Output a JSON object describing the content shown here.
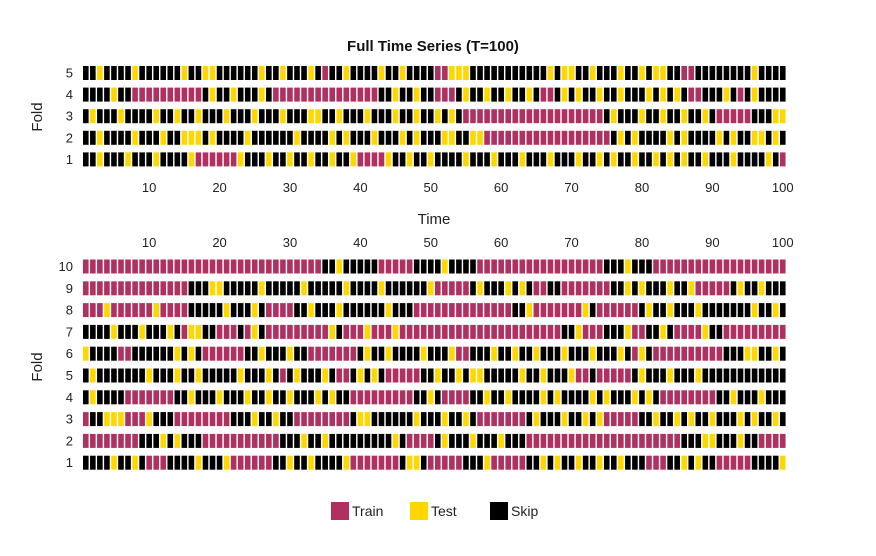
{
  "chart_data": {
    "type": "heatmap",
    "title": "Full Time Series (T=100)",
    "legend": {
      "position": "bottom",
      "entries": [
        {
          "label": "Train",
          "color": "#b03060"
        },
        {
          "label": "Test",
          "color": "#ffd700"
        },
        {
          "label": "Skip",
          "color": "#000000"
        }
      ]
    },
    "panels": [
      {
        "xlabel": "Time",
        "ylabel": "Fold",
        "x_ticks": [
          10,
          20,
          30,
          40,
          50,
          60,
          70,
          80,
          90,
          100
        ],
        "x_tick_position": "bottom",
        "y_ticks": [
          1,
          2,
          3,
          4,
          5
        ],
        "xlim": [
          1,
          100
        ],
        "rows": [
          {
            "fold": 1,
            "train": [
              [
                17,
                22
              ],
              [
                40,
                43
              ],
              [
                100,
                100
              ]
            ],
            "test": [
              3,
              7,
              11,
              16,
              23,
              27,
              30,
              33,
              36,
              39,
              44,
              47,
              50,
              55,
              59,
              63,
              67,
              71,
              74,
              76,
              79,
              82,
              84,
              86,
              89,
              93,
              98
            ]
          },
          {
            "fold": 2,
            "train": [
              [
                58,
                75
              ]
            ],
            "test": [
              3,
              8,
              12,
              15,
              16,
              17,
              19,
              24,
              31,
              36,
              38,
              42,
              46,
              48,
              52,
              53,
              56,
              57,
              77,
              79,
              84,
              86,
              91,
              93,
              96,
              97,
              99
            ]
          },
          {
            "fold": 3,
            "train": [
              [
                55,
                74
              ],
              [
                91,
                95
              ]
            ],
            "test": [
              2,
              6,
              11,
              14,
              17,
              21,
              25,
              29,
              33,
              34,
              37,
              41,
              45,
              48,
              51,
              53,
              76,
              80,
              83,
              86,
              89,
              99,
              100
            ]
          },
          {
            "fold": 4,
            "train": [
              [
                8,
                17
              ],
              [
                28,
                42
              ],
              [
                51,
                53
              ],
              [
                66,
                67
              ],
              [
                87,
                88
              ],
              [
                94,
                94
              ]
            ],
            "test": [
              5,
              19,
              22,
              26,
              45,
              48,
              55,
              58,
              61,
              64,
              69,
              71,
              74,
              77,
              81,
              83,
              85,
              92,
              96
            ]
          },
          {
            "fold": 5,
            "train": [
              [
                35,
                35
              ],
              [
                51,
                52
              ],
              [
                86,
                87
              ]
            ],
            "test": [
              3,
              8,
              15,
              18,
              19,
              26,
              29,
              33,
              38,
              43,
              46,
              53,
              54,
              55,
              67,
              69,
              70,
              73,
              77,
              80,
              82,
              83,
              96
            ]
          }
        ]
      },
      {
        "xlabel": "",
        "ylabel": "Fold",
        "x_ticks": [
          10,
          20,
          30,
          40,
          50,
          60,
          70,
          80,
          90,
          100
        ],
        "x_tick_position": "top",
        "y_ticks": [
          1,
          2,
          3,
          4,
          5,
          6,
          7,
          8,
          9,
          10
        ],
        "xlim": [
          1,
          100
        ],
        "rows": [
          {
            "fold": 1,
            "train": [
              [
                10,
                12
              ],
              [
                22,
                27
              ],
              [
                39,
                45
              ],
              [
                50,
                54
              ],
              [
                59,
                63
              ],
              [
                81,
                83
              ],
              [
                91,
                95
              ]
            ],
            "test": [
              5,
              8,
              17,
              21,
              30,
              33,
              38,
              47,
              48,
              58,
              66,
              68,
              71,
              74,
              77,
              86,
              88,
              100
            ]
          },
          {
            "fold": 2,
            "train": [
              [
                1,
                8
              ],
              [
                18,
                28
              ],
              [
                47,
                50
              ],
              [
                64,
                85
              ],
              [
                97,
                100
              ]
            ],
            "test": [
              12,
              14,
              32,
              35,
              45,
              52,
              56,
              60,
              89,
              90,
              94
            ]
          },
          {
            "fold": 3,
            "train": [
              [
                1,
                1
              ],
              [
                7,
                9
              ],
              [
                14,
                21
              ],
              [
                31,
                38
              ],
              [
                57,
                63
              ],
              [
                75,
                79
              ]
            ],
            "test": [
              4,
              5,
              6,
              10,
              25,
              28,
              40,
              41,
              48,
              52,
              55,
              65,
              69,
              72,
              74,
              82,
              85,
              87,
              90,
              94,
              96,
              99
            ]
          },
          {
            "fold": 4,
            "train": [
              [
                7,
                13
              ],
              [
                39,
                47
              ],
              [
                52,
                55
              ],
              [
                83,
                90
              ]
            ],
            "test": [
              2,
              16,
              20,
              24,
              27,
              30,
              34,
              36,
              50,
              58,
              61,
              66,
              68,
              73,
              75,
              79,
              81,
              93,
              97
            ]
          },
          {
            "fold": 5,
            "train": [
              [
                29,
                29
              ],
              [
                37,
                38
              ],
              [
                44,
                48
              ],
              [
                71,
                72
              ],
              [
                74,
                78
              ]
            ],
            "test": [
              2,
              10,
              14,
              17,
              23,
              27,
              31,
              35,
              40,
              42,
              51,
              54,
              56,
              57,
              63,
              66,
              70,
              80,
              84,
              88
            ]
          },
          {
            "fold": 6,
            "train": [
              [
                6,
                7
              ],
              [
                18,
                23
              ],
              [
                33,
                39
              ],
              [
                54,
                55
              ],
              [
                79,
                79
              ],
              [
                82,
                91
              ]
            ],
            "test": [
              1,
              14,
              16,
              26,
              30,
              41,
              44,
              49,
              53,
              59,
              62,
              65,
              69,
              73,
              77,
              80,
              95,
              96,
              99
            ]
          },
          {
            "fold": 7,
            "train": [
              [
                15,
                15
              ],
              [
                20,
                22
              ],
              [
                24,
                24
              ],
              [
                27,
                35
              ],
              [
                38,
                40
              ],
              [
                42,
                44
              ],
              [
                46,
                68
              ],
              [
                72,
                74
              ],
              [
                79,
                80
              ],
              [
                85,
                88
              ],
              [
                92,
                100
              ]
            ],
            "test": [
              5,
              9,
              13,
              16,
              17,
              25,
              36,
              41,
              45,
              71,
              78,
              83,
              89
            ]
          },
          {
            "fold": 8,
            "train": [
              [
                1,
                10
              ],
              [
                12,
                15
              ],
              [
                27,
                30
              ],
              [
                48,
                61
              ],
              [
                65,
                71
              ],
              [
                74,
                79
              ]
            ],
            "test": [
              4,
              11,
              21,
              25,
              33,
              37,
              44,
              64,
              72,
              81,
              84,
              88,
              96,
              99
            ]
          },
          {
            "fold": 9,
            "train": [
              [
                1,
                15
              ],
              [
                51,
                55
              ],
              [
                65,
                66
              ],
              [
                69,
                75
              ],
              [
                88,
                92
              ]
            ],
            "test": [
              19,
              20,
              26,
              32,
              38,
              43,
              50,
              57,
              61,
              63,
              78,
              80,
              84,
              87,
              94,
              97
            ]
          },
          {
            "fold": 10,
            "train": [
              [
                1,
                34
              ],
              [
                43,
                47
              ],
              [
                57,
                74
              ],
              [
                82,
                100
              ]
            ],
            "test": [
              37,
              52,
              78
            ]
          }
        ]
      }
    ]
  }
}
